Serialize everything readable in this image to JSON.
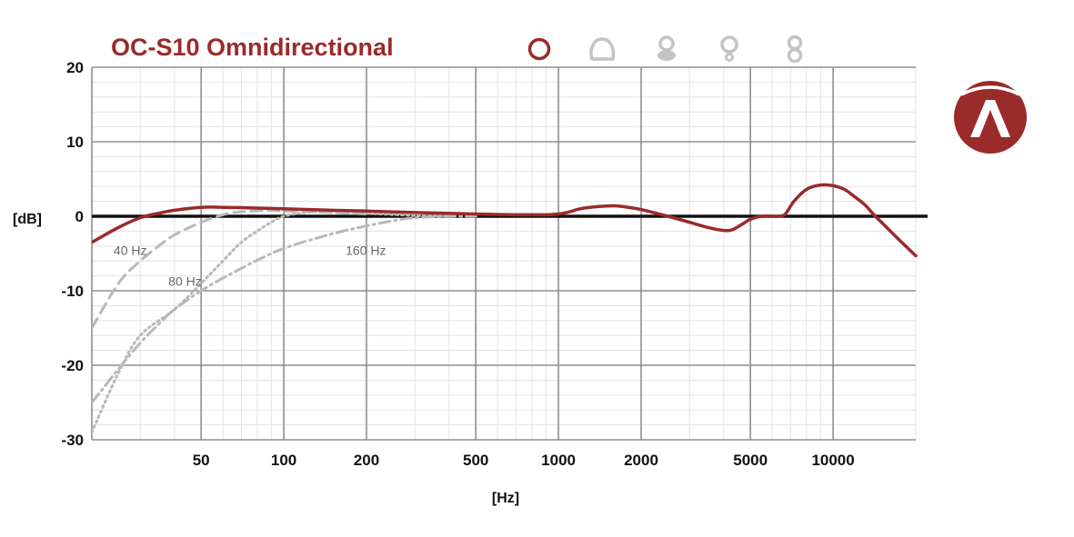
{
  "chart_data": {
    "type": "line",
    "title": "OC-S10 Omnidirectional",
    "xlabel": "[Hz]",
    "ylabel": "[dB]",
    "x_scale": "log",
    "xlim": [
      20,
      20000
    ],
    "ylim": [
      -30,
      20
    ],
    "x_ticks": [
      {
        "value": 50,
        "label": "50"
      },
      {
        "value": 100,
        "label": "100"
      },
      {
        "value": 200,
        "label": "200"
      },
      {
        "value": 500,
        "label": "500"
      },
      {
        "value": 1000,
        "label": "1000"
      },
      {
        "value": 2000,
        "label": "2000"
      },
      {
        "value": 5000,
        "label": "5000"
      },
      {
        "value": 10000,
        "label": "10000"
      }
    ],
    "y_ticks": [
      {
        "value": 20,
        "label": "20"
      },
      {
        "value": 10,
        "label": "10"
      },
      {
        "value": 0,
        "label": "0"
      },
      {
        "value": -10,
        "label": "-10"
      },
      {
        "value": -20,
        "label": "-20"
      },
      {
        "value": -30,
        "label": "-30"
      }
    ],
    "grid": true,
    "series": [
      {
        "name": "",
        "style": "solid",
        "color": "#9b2a2a",
        "points": [
          [
            20,
            -3.5
          ],
          [
            25,
            -1.5
          ],
          [
            30,
            -0.2
          ],
          [
            35,
            0.4
          ],
          [
            40,
            0.8
          ],
          [
            50,
            1.2
          ],
          [
            60,
            1.2
          ],
          [
            80,
            1.1
          ],
          [
            100,
            1.0
          ],
          [
            150,
            0.8
          ],
          [
            200,
            0.7
          ],
          [
            300,
            0.5
          ],
          [
            400,
            0.4
          ],
          [
            500,
            0.3
          ],
          [
            700,
            0.2
          ],
          [
            900,
            0.2
          ],
          [
            1000,
            0.3
          ],
          [
            1100,
            0.6
          ],
          [
            1200,
            1.0
          ],
          [
            1400,
            1.3
          ],
          [
            1600,
            1.4
          ],
          [
            1800,
            1.2
          ],
          [
            2000,
            0.9
          ],
          [
            2500,
            0.0
          ],
          [
            3000,
            -0.8
          ],
          [
            3500,
            -1.5
          ],
          [
            4000,
            -1.9
          ],
          [
            4300,
            -1.8
          ],
          [
            4700,
            -1.0
          ],
          [
            5000,
            -0.4
          ],
          [
            5500,
            0.0
          ],
          [
            6300,
            0.0
          ],
          [
            6700,
            0.3
          ],
          [
            7200,
            2.0
          ],
          [
            8000,
            3.6
          ],
          [
            9000,
            4.2
          ],
          [
            10000,
            4.1
          ],
          [
            11000,
            3.6
          ],
          [
            12000,
            2.6
          ],
          [
            13000,
            1.6
          ],
          [
            14000,
            0.3
          ],
          [
            15000,
            -0.8
          ],
          [
            17000,
            -2.8
          ],
          [
            20000,
            -5.3
          ]
        ]
      },
      {
        "name": "",
        "style": "dashed",
        "color": "#b9b9b9",
        "points": [
          [
            20,
            -15
          ],
          [
            25,
            -9
          ],
          [
            30,
            -6
          ],
          [
            35,
            -4
          ],
          [
            40,
            -2.5
          ],
          [
            50,
            -0.8
          ],
          [
            60,
            0.2
          ],
          [
            70,
            0.6
          ],
          [
            90,
            0.8
          ],
          [
            100,
            0.7
          ],
          [
            150,
            0.5
          ],
          [
            200,
            0.3
          ]
        ]
      },
      {
        "name": "",
        "style": "dotted",
        "color": "#b9b9b9",
        "points": [
          [
            20,
            -29
          ],
          [
            25,
            -21
          ],
          [
            30,
            -16
          ],
          [
            40,
            -12.5
          ],
          [
            50,
            -9
          ],
          [
            60,
            -6
          ],
          [
            70,
            -3.5
          ],
          [
            80,
            -2
          ],
          [
            90,
            -0.8
          ],
          [
            100,
            0.0
          ],
          [
            120,
            0.5
          ],
          [
            150,
            0.6
          ],
          [
            200,
            0.4
          ],
          [
            300,
            0.1
          ],
          [
            400,
            0.0
          ]
        ]
      },
      {
        "name": "",
        "style": "dashdot",
        "color": "#b9b9b9",
        "points": [
          [
            20,
            -25
          ],
          [
            25,
            -20.5
          ],
          [
            30,
            -17
          ],
          [
            35,
            -14.5
          ],
          [
            40,
            -12.5
          ],
          [
            50,
            -10
          ],
          [
            60,
            -8.3
          ],
          [
            70,
            -7
          ],
          [
            80,
            -5.9
          ],
          [
            100,
            -4.3
          ],
          [
            130,
            -3.0
          ],
          [
            160,
            -2.1
          ],
          [
            200,
            -1.3
          ],
          [
            250,
            -0.6
          ],
          [
            300,
            -0.2
          ],
          [
            400,
            0.0
          ],
          [
            500,
            0.0
          ]
        ]
      }
    ],
    "annotations": [
      {
        "text": "40 Hz",
        "x": 24,
        "y": -5.2
      },
      {
        "text": "80 Hz",
        "x": 38,
        "y": -9.3
      },
      {
        "text": "160 Hz",
        "x": 168,
        "y": -5.2
      }
    ]
  },
  "colors": {
    "brand": "#9b2a2a",
    "grid": "#bdbdbd",
    "grid_minor": "#e3e3e3",
    "curve_gray": "#b9b9b9",
    "pattern_icon": "#c4c4c4"
  },
  "pattern_icons": [
    {
      "name": "omnidirectional-pattern-icon",
      "active": true
    },
    {
      "name": "subcardioid-pattern-icon",
      "active": false
    },
    {
      "name": "cardioid-pattern-icon",
      "active": false
    },
    {
      "name": "hypercardioid-pattern-icon",
      "active": false
    },
    {
      "name": "figure-eight-pattern-icon",
      "active": false
    }
  ],
  "logo_icon": "brand-logo-icon"
}
